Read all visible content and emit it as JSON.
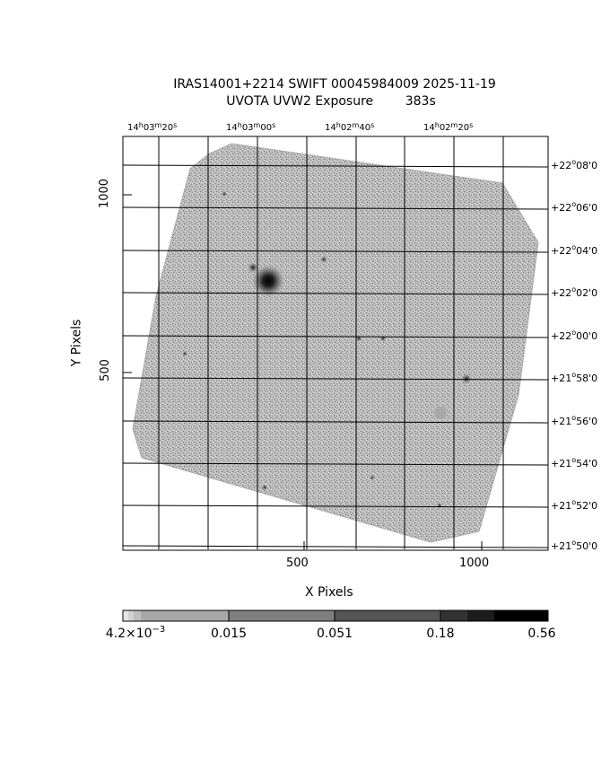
{
  "title": {
    "line1": "IRAS14001+2214 SWIFT 00045984009 2025-11-19",
    "line2": "UVOTA UVW2 Exposure        383s"
  },
  "axes": {
    "xlabel": "X Pixels",
    "ylabel": "Y Pixels",
    "x_ticks": [
      "500",
      "1000"
    ],
    "y_ticks": [
      "500",
      "1000"
    ],
    "ra_ticks": [
      {
        "h": "14",
        "m": "03",
        "s": "20"
      },
      {
        "h": "14",
        "m": "03",
        "s": "00"
      },
      {
        "h": "14",
        "m": "02",
        "s": "40"
      },
      {
        "h": "14",
        "m": "02",
        "s": "20"
      }
    ],
    "dec_ticks": [
      {
        "d": "+22",
        "m": "08",
        "s": "0"
      },
      {
        "d": "+22",
        "m": "06",
        "s": "0"
      },
      {
        "d": "+22",
        "m": "04",
        "s": "0"
      },
      {
        "d": "+22",
        "m": "02",
        "s": "0"
      },
      {
        "d": "+22",
        "m": "00",
        "s": "0"
      },
      {
        "d": "+21",
        "m": "58",
        "s": "0"
      },
      {
        "d": "+21",
        "m": "56",
        "s": "0"
      },
      {
        "d": "+21",
        "m": "54",
        "s": "0"
      },
      {
        "d": "+21",
        "m": "52",
        "s": "0"
      },
      {
        "d": "+21",
        "m": "50",
        "s": "0"
      }
    ]
  },
  "colorbar": {
    "ticks": [
      {
        "mant": "4.2×10",
        "exp": "−3"
      },
      {
        "mant": "0.015"
      },
      {
        "mant": "0.051"
      },
      {
        "mant": "0.18"
      },
      {
        "mant": "0.56"
      }
    ]
  }
}
